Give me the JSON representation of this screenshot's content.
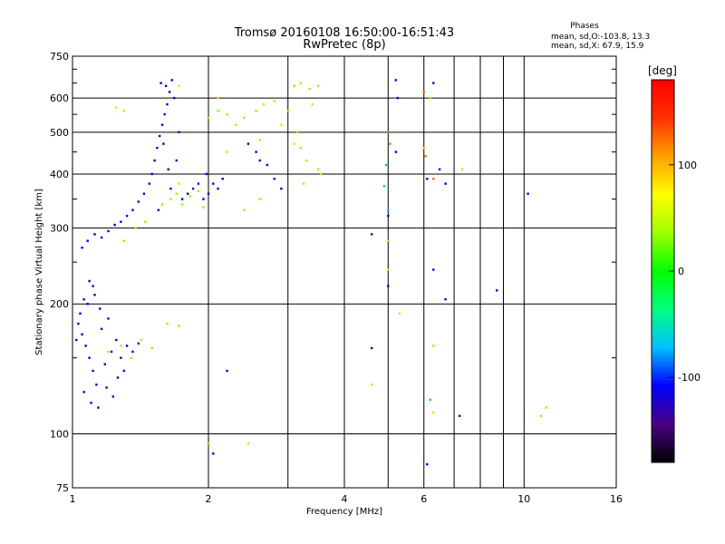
{
  "chart_data": {
    "type": "scatter",
    "title": "Tromsø 20160108 16:50:00-16:51:43",
    "subtitle": "RwPretec (8p)",
    "xlabel": "Frequency [MHz]",
    "ylabel": "Stationary phase Virtual Height [km]",
    "xscale": "log",
    "yscale": "log",
    "xlim": [
      1,
      16
    ],
    "ylim": [
      75,
      750
    ],
    "grid": true,
    "x_ticks": [
      1,
      2,
      4,
      6,
      10,
      16
    ],
    "x_minor_ticks": [
      3,
      5,
      7,
      8,
      9
    ],
    "y_ticks": [
      75,
      100,
      200,
      300,
      400,
      500,
      600,
      750
    ],
    "y_minor_ticks": [
      150,
      250,
      350,
      450,
      550,
      650,
      700
    ],
    "stats": {
      "heading": "Phases",
      "line1": "mean, sd,O:-103.8, 13.3",
      "line2": "mean, sd,X:  67.9, 15.9"
    },
    "colorbar": {
      "label": "[deg]",
      "min": -180,
      "max": 180,
      "ticks": [
        100,
        0,
        -100
      ],
      "stops": [
        "#000000",
        "#4b0082",
        "#0000ff",
        "#00c0ff",
        "#00ff80",
        "#00ff00",
        "#a0ff00",
        "#ffff00",
        "#ffa000",
        "#ff3000",
        "#ff0000"
      ]
    },
    "series": [
      {
        "color": "#0000cc",
        "points": [
          [
            1.03,
            180
          ],
          [
            1.05,
            170
          ],
          [
            1.07,
            160
          ],
          [
            1.09,
            150
          ],
          [
            1.11,
            140
          ],
          [
            1.13,
            130
          ],
          [
            1.06,
            125
          ],
          [
            1.1,
            118
          ],
          [
            1.14,
            115
          ],
          [
            1.18,
            145
          ],
          [
            1.22,
            155
          ],
          [
            1.25,
            165
          ],
          [
            1.28,
            150
          ],
          [
            1.16,
            175
          ],
          [
            1.2,
            185
          ],
          [
            1.08,
            200
          ],
          [
            1.12,
            210
          ],
          [
            1.15,
            195
          ],
          [
            1.04,
            190
          ],
          [
            1.02,
            165
          ],
          [
            1.32,
            160
          ],
          [
            1.36,
            155
          ],
          [
            1.4,
            162
          ],
          [
            1.3,
            140
          ],
          [
            1.26,
            135
          ],
          [
            1.19,
            128
          ],
          [
            1.23,
            122
          ],
          [
            1.09,
            226
          ],
          [
            1.11,
            220
          ],
          [
            1.06,
            205
          ],
          [
            1.05,
            270
          ],
          [
            1.08,
            280
          ],
          [
            1.12,
            290
          ],
          [
            1.16,
            285
          ],
          [
            1.2,
            295
          ],
          [
            1.24,
            305
          ],
          [
            1.28,
            310
          ],
          [
            1.32,
            320
          ],
          [
            1.36,
            330
          ],
          [
            1.4,
            345
          ],
          [
            1.44,
            360
          ],
          [
            1.48,
            380
          ],
          [
            1.5,
            400
          ],
          [
            1.52,
            430
          ],
          [
            1.54,
            460
          ],
          [
            1.56,
            490
          ],
          [
            1.58,
            520
          ],
          [
            1.6,
            550
          ],
          [
            1.62,
            580
          ],
          [
            1.64,
            620
          ],
          [
            1.66,
            660
          ],
          [
            1.57,
            650
          ],
          [
            1.61,
            640
          ],
          [
            1.68,
            600
          ],
          [
            1.59,
            470
          ],
          [
            1.63,
            410
          ],
          [
            1.65,
            370
          ],
          [
            1.7,
            430
          ],
          [
            1.72,
            500
          ],
          [
            1.55,
            330
          ],
          [
            1.75,
            350
          ],
          [
            1.8,
            360
          ],
          [
            1.85,
            370
          ],
          [
            1.9,
            380
          ],
          [
            1.95,
            350
          ],
          [
            2.0,
            360
          ],
          [
            2.05,
            380
          ],
          [
            2.1,
            370
          ],
          [
            1.98,
            400
          ],
          [
            2.15,
            390
          ],
          [
            2.45,
            470
          ],
          [
            2.55,
            450
          ],
          [
            2.6,
            430
          ],
          [
            2.7,
            420
          ],
          [
            2.8,
            390
          ],
          [
            2.9,
            370
          ],
          [
            2.2,
            140
          ],
          [
            2.05,
            90
          ],
          [
            5.2,
            660
          ],
          [
            5.25,
            600
          ],
          [
            5.2,
            450
          ],
          [
            6.3,
            650
          ],
          [
            6.5,
            410
          ],
          [
            6.7,
            380
          ],
          [
            6.3,
            240
          ],
          [
            5.0,
            220
          ],
          [
            4.6,
            290
          ],
          [
            5.0,
            320
          ],
          [
            6.1,
            390
          ],
          [
            6.1,
            85
          ],
          [
            7.2,
            110
          ],
          [
            8.7,
            215
          ],
          [
            10.2,
            360
          ],
          [
            6.7,
            205
          ],
          [
            4.6,
            158
          ]
        ]
      },
      {
        "color": "#00bfff",
        "points": [
          [
            4.9,
            375
          ],
          [
            5.0,
            330
          ],
          [
            4.95,
            420
          ],
          [
            6.2,
            120
          ]
        ]
      },
      {
        "color": "#90ff00",
        "points": [
          [
            1.2,
            155
          ],
          [
            1.28,
            160
          ],
          [
            1.35,
            150
          ],
          [
            1.42,
            165
          ],
          [
            1.5,
            158
          ],
          [
            1.62,
            180
          ],
          [
            1.72,
            178
          ],
          [
            1.58,
            340
          ],
          [
            1.65,
            350
          ],
          [
            1.7,
            360
          ],
          [
            1.75,
            340
          ],
          [
            1.82,
            355
          ],
          [
            1.9,
            365
          ],
          [
            1.95,
            335
          ],
          [
            1.3,
            280
          ],
          [
            1.38,
            300
          ],
          [
            1.45,
            310
          ],
          [
            2.0,
            540
          ],
          [
            2.1,
            560
          ],
          [
            2.2,
            550
          ],
          [
            2.3,
            520
          ],
          [
            2.4,
            540
          ],
          [
            2.55,
            560
          ],
          [
            2.65,
            580
          ],
          [
            2.8,
            590
          ],
          [
            3.0,
            560
          ],
          [
            3.1,
            640
          ],
          [
            3.2,
            650
          ],
          [
            3.35,
            630
          ],
          [
            3.5,
            640
          ],
          [
            3.15,
            500
          ],
          [
            3.2,
            460
          ],
          [
            3.3,
            430
          ],
          [
            3.5,
            410
          ],
          [
            3.25,
            380
          ],
          [
            3.55,
            400
          ],
          [
            2.4,
            330
          ],
          [
            2.6,
            350
          ],
          [
            5.0,
            280
          ],
          [
            6.3,
            160
          ],
          [
            10.9,
            110
          ],
          [
            11.2,
            115
          ],
          [
            2.0,
            95
          ]
        ]
      },
      {
        "color": "#ffd200",
        "points": [
          [
            1.25,
            570
          ],
          [
            1.3,
            560
          ],
          [
            1.72,
            640
          ],
          [
            2.1,
            600
          ],
          [
            2.2,
            450
          ],
          [
            2.6,
            480
          ],
          [
            2.9,
            520
          ],
          [
            3.4,
            580
          ],
          [
            4.6,
            130
          ],
          [
            5.0,
            240
          ],
          [
            5.3,
            190
          ],
          [
            6.2,
            600
          ],
          [
            6.0,
            460
          ],
          [
            7.3,
            410
          ],
          [
            2.45,
            95
          ],
          [
            6.3,
            112
          ],
          [
            1.72,
            380
          ],
          [
            3.1,
            470
          ]
        ]
      },
      {
        "color": "#ff6a00",
        "points": [
          [
            5.0,
            500
          ],
          [
            5.05,
            470
          ],
          [
            6.0,
            620
          ],
          [
            6.05,
            440
          ],
          [
            6.3,
            390
          ]
        ]
      }
    ]
  }
}
